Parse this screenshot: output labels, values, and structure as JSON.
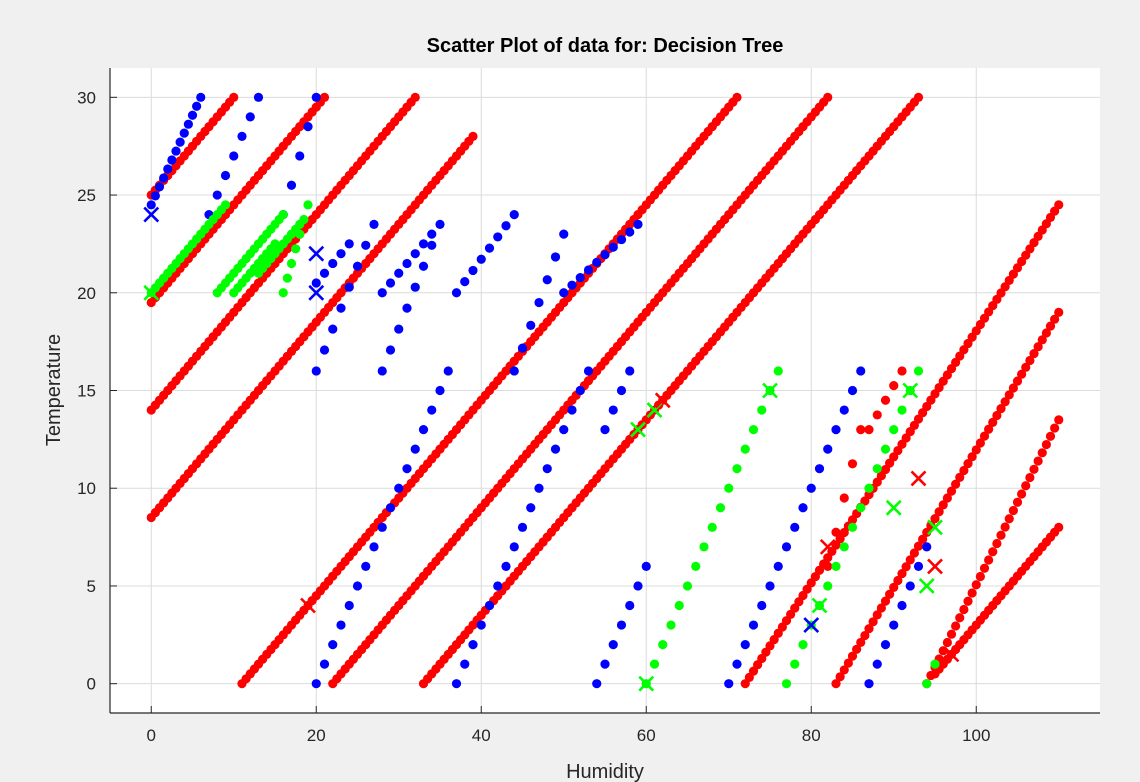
{
  "chart_data": {
    "type": "scatter",
    "title": "Scatter Plot of data for: Decision Tree",
    "xlabel": "Humidity",
    "ylabel": "Temperature",
    "xlim": [
      -5,
      115
    ],
    "ylim": [
      -1.5,
      31.5
    ],
    "xticks": [
      0,
      20,
      40,
      60,
      80,
      100
    ],
    "yticks": [
      0,
      5,
      10,
      15,
      20,
      25,
      30
    ],
    "grid": true,
    "colors": {
      "red": "#ff0000",
      "blue": "#0000ff",
      "green": "#00ff00"
    },
    "segments": [
      {
        "color": "red",
        "x0": 0,
        "y0": 25,
        "x1": 10,
        "y1": 30,
        "step": 0.5
      },
      {
        "color": "red",
        "x0": 0,
        "y0": 19.5,
        "x1": 21,
        "y1": 30,
        "step": 0.5
      },
      {
        "color": "red",
        "x0": 0,
        "y0": 14,
        "x1": 32,
        "y1": 30,
        "step": 0.5
      },
      {
        "color": "red",
        "x0": 0,
        "y0": 8.5,
        "x1": 39,
        "y1": 28,
        "step": 0.5
      },
      {
        "color": "red",
        "x0": 11,
        "y0": 0,
        "x1": 71,
        "y1": 30,
        "step": 0.5
      },
      {
        "color": "red",
        "x0": 22,
        "y0": 0,
        "x1": 82,
        "y1": 30,
        "step": 0.5
      },
      {
        "color": "red",
        "x0": 33,
        "y0": 0,
        "x1": 93,
        "y1": 30,
        "step": 0.5
      },
      {
        "color": "red",
        "x0": 72,
        "y0": 0,
        "x1": 110,
        "y1": 24.5,
        "step": 0.5
      },
      {
        "color": "red",
        "x0": 83,
        "y0": 0,
        "x1": 110,
        "y1": 19,
        "step": 0.5
      },
      {
        "color": "red",
        "x0": 94,
        "y0": 0,
        "x1": 110,
        "y1": 13.5,
        "step": 0.5
      },
      {
        "color": "red",
        "x0": 95,
        "y0": 0.5,
        "x1": 110,
        "y1": 8,
        "step": 0.5
      },
      {
        "color": "red",
        "x0": 82,
        "y0": 6,
        "x1": 86,
        "y1": 13,
        "step": 1
      },
      {
        "color": "red",
        "x0": 87,
        "y0": 13,
        "x1": 91,
        "y1": 16,
        "step": 1
      },
      {
        "color": "blue",
        "x0": 0,
        "y0": 24.5,
        "x1": 6,
        "y1": 30,
        "step": 0.5
      },
      {
        "color": "blue",
        "x0": 7,
        "y0": 24,
        "x1": 13,
        "y1": 30,
        "step": 1
      },
      {
        "color": "blue",
        "x0": 16,
        "y0": 24,
        "x1": 20,
        "y1": 30,
        "step": 1
      },
      {
        "color": "blue",
        "x0": 20,
        "y0": 16,
        "x1": 27,
        "y1": 23.5,
        "step": 1
      },
      {
        "color": "blue",
        "x0": 20,
        "y0": 20.5,
        "x1": 24,
        "y1": 22.5,
        "step": 1
      },
      {
        "color": "blue",
        "x0": 28,
        "y0": 16,
        "x1": 35,
        "y1": 23.5,
        "step": 1
      },
      {
        "color": "blue",
        "x0": 28,
        "y0": 20,
        "x1": 34,
        "y1": 23,
        "step": 1
      },
      {
        "color": "blue",
        "x0": 37,
        "y0": 20,
        "x1": 44,
        "y1": 24,
        "step": 1
      },
      {
        "color": "blue",
        "x0": 44,
        "y0": 16,
        "x1": 50,
        "y1": 23,
        "step": 1
      },
      {
        "color": "blue",
        "x0": 50,
        "y0": 20,
        "x1": 59,
        "y1": 23.5,
        "step": 1
      },
      {
        "color": "blue",
        "x0": 20,
        "y0": 0,
        "x1": 36,
        "y1": 16,
        "step": 1
      },
      {
        "color": "blue",
        "x0": 37,
        "y0": 0,
        "x1": 53,
        "y1": 16,
        "step": 1
      },
      {
        "color": "blue",
        "x0": 54,
        "y0": 0,
        "x1": 60,
        "y1": 6,
        "step": 1
      },
      {
        "color": "blue",
        "x0": 55,
        "y0": 13,
        "x1": 58,
        "y1": 16,
        "step": 1
      },
      {
        "color": "blue",
        "x0": 70,
        "y0": 0,
        "x1": 86,
        "y1": 16,
        "step": 1
      },
      {
        "color": "blue",
        "x0": 87,
        "y0": 0,
        "x1": 94,
        "y1": 7,
        "step": 1
      },
      {
        "color": "green",
        "x0": 0,
        "y0": 20,
        "x1": 9,
        "y1": 24.5,
        "step": 0.5
      },
      {
        "color": "green",
        "x0": 8,
        "y0": 20,
        "x1": 16,
        "y1": 24,
        "step": 0.5
      },
      {
        "color": "green",
        "x0": 10,
        "y0": 20,
        "x1": 15,
        "y1": 22.5,
        "step": 0.5
      },
      {
        "color": "green",
        "x0": 13,
        "y0": 21,
        "x1": 18,
        "y1": 23.5,
        "step": 0.5
      },
      {
        "color": "green",
        "x0": 16,
        "y0": 20,
        "x1": 19,
        "y1": 24.5,
        "step": 0.5
      },
      {
        "color": "green",
        "x0": 60,
        "y0": 0,
        "x1": 76,
        "y1": 16,
        "step": 1
      },
      {
        "color": "green",
        "x0": 77,
        "y0": 0,
        "x1": 93,
        "y1": 16,
        "step": 1
      },
      {
        "color": "green",
        "x0": 94,
        "y0": 0,
        "x1": 95,
        "y1": 1,
        "step": 1
      }
    ],
    "markers_x": [
      {
        "x": 0,
        "y": 24,
        "color": "blue"
      },
      {
        "x": 20,
        "y": 22,
        "color": "blue"
      },
      {
        "x": 20,
        "y": 20,
        "color": "blue"
      },
      {
        "x": 80,
        "y": 3,
        "color": "blue"
      },
      {
        "x": 0,
        "y": 20,
        "color": "green"
      },
      {
        "x": 59,
        "y": 13,
        "color": "green"
      },
      {
        "x": 61,
        "y": 14,
        "color": "green"
      },
      {
        "x": 75,
        "y": 15,
        "color": "green"
      },
      {
        "x": 60,
        "y": 0,
        "color": "green"
      },
      {
        "x": 81,
        "y": 4,
        "color": "green"
      },
      {
        "x": 90,
        "y": 9,
        "color": "green"
      },
      {
        "x": 92,
        "y": 15,
        "color": "green"
      },
      {
        "x": 94,
        "y": 5,
        "color": "green"
      },
      {
        "x": 95,
        "y": 8,
        "color": "green"
      },
      {
        "x": 19,
        "y": 4,
        "color": "red"
      },
      {
        "x": 62,
        "y": 14.5,
        "color": "red"
      },
      {
        "x": 82,
        "y": 7,
        "color": "red"
      },
      {
        "x": 93,
        "y": 10.5,
        "color": "red"
      },
      {
        "x": 95,
        "y": 6,
        "color": "red"
      },
      {
        "x": 97,
        "y": 1.5,
        "color": "red"
      }
    ]
  }
}
